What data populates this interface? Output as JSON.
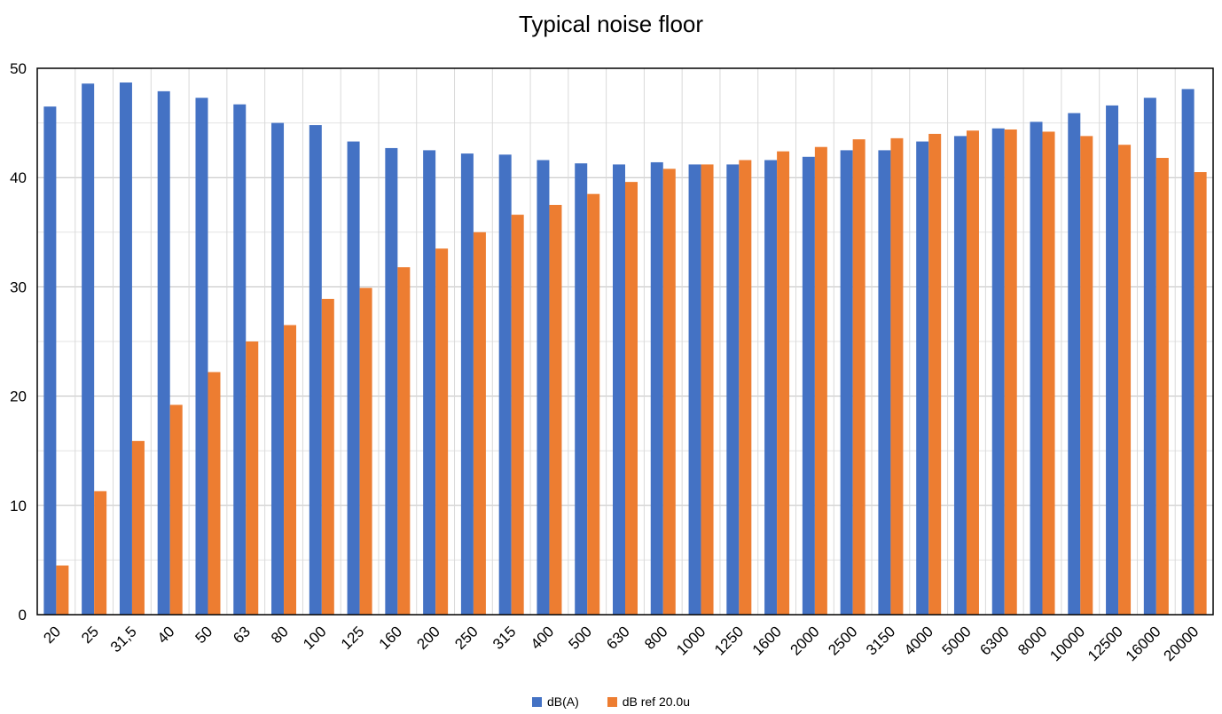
{
  "chart_data": {
    "type": "bar",
    "title": "Typical noise floor",
    "xlabel": "",
    "ylabel": "",
    "ylim": [
      0,
      50
    ],
    "yticks": [
      0,
      10,
      20,
      30,
      40,
      50
    ],
    "grid": true,
    "legend_position": "bottom",
    "categories": [
      "20",
      "25",
      "31,5",
      "40",
      "50",
      "63",
      "80",
      "100",
      "125",
      "160",
      "200",
      "250",
      "315",
      "400",
      "500",
      "630",
      "800",
      "1000",
      "1250",
      "1600",
      "2000",
      "2500",
      "3150",
      "4000",
      "5000",
      "6300",
      "8000",
      "10000",
      "12500",
      "16000",
      "20000"
    ],
    "series": [
      {
        "name": "dB(A)",
        "color": "#4472C4",
        "values": [
          46.5,
          48.6,
          48.7,
          47.9,
          47.3,
          46.7,
          45.0,
          44.8,
          43.3,
          42.7,
          42.5,
          42.2,
          42.1,
          41.6,
          41.3,
          41.2,
          41.4,
          41.2,
          41.2,
          41.6,
          41.9,
          42.5,
          42.5,
          43.3,
          43.8,
          44.5,
          45.1,
          45.9,
          46.6,
          47.3,
          48.1
        ]
      },
      {
        "name": "dB ref 20.0u",
        "color": "#ED7D31",
        "values": [
          4.5,
          11.3,
          15.9,
          19.2,
          22.2,
          25.0,
          26.5,
          28.9,
          29.9,
          31.8,
          33.5,
          35.0,
          36.6,
          37.5,
          38.5,
          39.6,
          40.8,
          41.2,
          41.6,
          42.4,
          42.8,
          43.5,
          43.6,
          44.0,
          44.3,
          44.4,
          44.2,
          43.8,
          43.0,
          41.8,
          40.5
        ]
      }
    ]
  }
}
